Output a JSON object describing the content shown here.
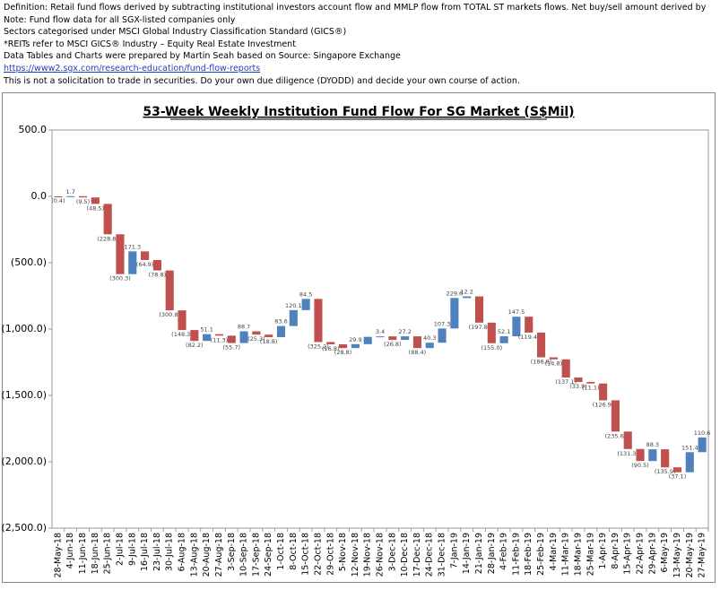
{
  "notes": [
    "Definition: Retail fund flows derived by subtracting institutional investors account flow and MMLP flow from TOTAL ST markets flows. Net buy/sell amount derived by",
    "Note: Fund flow data for all SGX-listed companies only",
    "Sectors categorised under MSCI Global Industry Classification Standard (GICS®)",
    "*REITs refer to MSCI GICS® Industry – Equity Real Estate Investment",
    "Data Tables and Charts were prepared by Martin Seah based on Source: Singapore Exchange",
    "https://www2.sgx.com/research-education/fund-flow-reports",
    "This is not a solicitation to trade in securities. Do your own due diligence (DYODD) and decide your own course of action."
  ],
  "chart_data": {
    "type": "waterfall",
    "title": "53-Week Weekly Institution Fund Flow For SG Market (S$Mil)",
    "categories": [
      "28-May-18",
      "4-Jun-18",
      "11-Jun-18",
      "18-Jun-18",
      "25-Jun-18",
      "2-Jul-18",
      "9-Jul-18",
      "16-Jul-18",
      "23-Jul-18",
      "30-Jul-18",
      "6-Aug-18",
      "13-Aug-18",
      "20-Aug-18",
      "27-Aug-18",
      "3-Sep-18",
      "10-Sep-18",
      "17-Sep-18",
      "24-Sep-18",
      "1-Oct-18",
      "8-Oct-18",
      "15-Oct-18",
      "22-Oct-18",
      "29-Oct-18",
      "5-Nov-18",
      "12-Nov-18",
      "19-Nov-18",
      "26-Nov-18",
      "3-Dec-18",
      "10-Dec-18",
      "17-Dec-18",
      "24-Dec-18",
      "31-Dec-18",
      "7-Jan-19",
      "14-Jan-19",
      "21-Jan-19",
      "28-Jan-19",
      "4-Feb-19",
      "11-Feb-19",
      "18-Feb-19",
      "25-Feb-19",
      "4-Mar-19",
      "11-Mar-19",
      "18-Mar-19",
      "25-Mar-19",
      "1-Apr-19",
      "8-Apr-19",
      "15-Apr-19",
      "22-Apr-19",
      "29-Apr-19",
      "6-May-19",
      "13-May-19",
      "20-May-19",
      "27-May-19"
    ],
    "values": [
      -0.4,
      1.7,
      -9.5,
      -48.5,
      -228.8,
      -300.3,
      171.3,
      -64.9,
      -78.8,
      -300.8,
      -148.3,
      -82.2,
      51.1,
      -11.3,
      -55.7,
      88.7,
      -25.3,
      -18.8,
      83.6,
      120.1,
      84.5,
      -325.2,
      -16.8,
      -28.8,
      29.9,
      55.0,
      3.4,
      -26.8,
      27.2,
      -88.4,
      40.3,
      107.3,
      229.6,
      12.2,
      -197.8,
      -155.0,
      52.1,
      147.5,
      -119.4,
      -186.8,
      -14.8,
      -137.1,
      -33.9,
      -11.1,
      -126.9,
      -235.6,
      -131.3,
      -90.5,
      88.3,
      -135.9,
      -37.1,
      151.4,
      110.6
    ],
    "value_labels": [
      "(0.4)",
      "1.7",
      "(9.5)",
      "(48.5)",
      "(228.8)",
      "(300.3)",
      "171.3",
      "(64.9)",
      "(78.8)",
      "(300.8)",
      "(148.3)",
      "(82.2)",
      "51.1",
      "(11.3)",
      "(55.7)",
      "88.7",
      "(25.3)",
      "(18.8)",
      "83.6",
      "120.1",
      "84.5",
      "(325.2)",
      "(16.8)",
      "(28.8)",
      "29.9",
      null,
      "3.4",
      "(26.8)",
      "27.2",
      "(88.4)",
      "40.3",
      "107.3",
      "229.6",
      "12.2",
      "(197.8)",
      "(155.0)",
      "52.1",
      "147.5",
      "(119.4)",
      "(186.8)",
      "(14.8)",
      "(137.1)",
      "(33.9)",
      "(11.1)",
      "(126.9)",
      "(235.6)",
      "(131.3)",
      "(90.5)",
      "88.3",
      "(135.9)",
      "(37.1)",
      "151.4",
      "110.6"
    ],
    "colors": {
      "increase": "#4f81bd",
      "decrease": "#c0504d"
    },
    "ylim": [
      -2500,
      500
    ],
    "yticks": [
      {
        "value": 500,
        "label": "500.0"
      },
      {
        "value": 0,
        "label": "0.0"
      },
      {
        "value": -500,
        "label": "(500.0)"
      },
      {
        "value": -1000,
        "label": "(1,000.0)"
      },
      {
        "value": -1500,
        "label": "(1,500.0)"
      },
      {
        "value": -2000,
        "label": "(2,000.0)"
      },
      {
        "value": -2500,
        "label": "(2,500.0)"
      }
    ]
  }
}
